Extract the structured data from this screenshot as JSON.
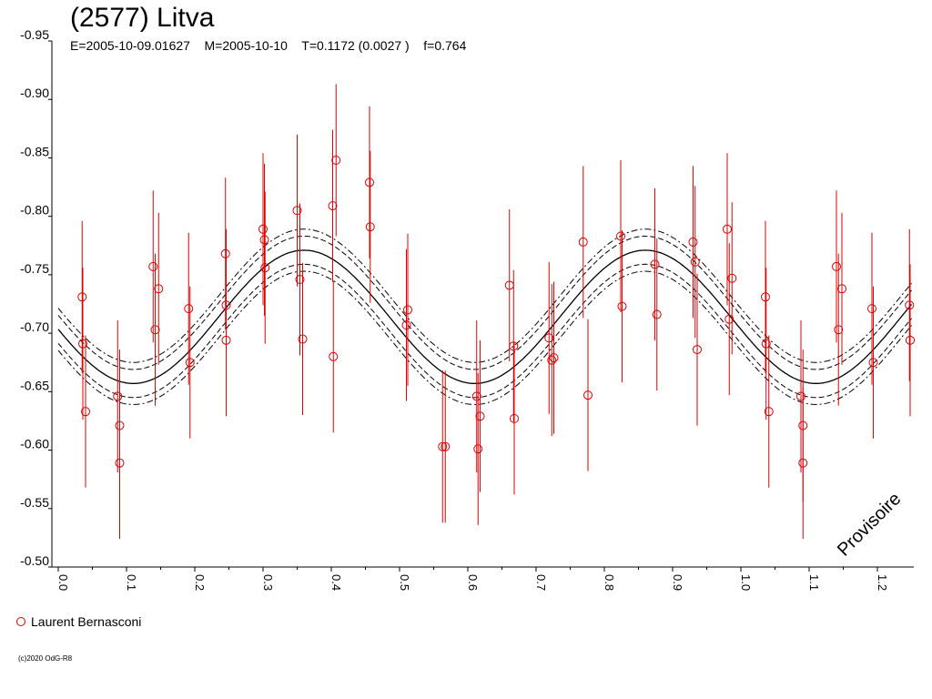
{
  "chart_data": {
    "type": "scatter",
    "title": "(2577) Litva",
    "subtitle": "E=2005-10-09.01627    M=2005-10-10    T=0.1172 (0.0027 )    f=0.764",
    "watermark": "Provisoire",
    "xlim": [
      0.0,
      1.25
    ],
    "ylim": [
      -0.95,
      -0.5
    ],
    "x_ticks": [
      "0.0",
      "0.1",
      "0.2",
      "0.3",
      "0.4",
      "0.5",
      "0.6",
      "0.7",
      "0.8",
      "0.9",
      "1.0",
      "1.1",
      "1.2"
    ],
    "y_ticks": [
      "-0.95",
      "-0.90",
      "-0.85",
      "-0.80",
      "-0.75",
      "-0.70",
      "-0.65",
      "-0.60",
      "-0.55",
      "-0.50"
    ],
    "fit": {
      "mean": -0.714,
      "terms": [
        {
          "h": 1,
          "a": 0.0,
          "b": 0.0
        },
        {
          "h": 2,
          "a": 0.0,
          "b": 0.0
        }
      ],
      "amplitude": 0.057,
      "peak_phase": 0.36,
      "band_inner": 0.012,
      "band_outer": 0.018
    },
    "series": [
      {
        "name": "Laurent Bernasconi",
        "color": "#e00000",
        "points": [
          [
            0.035,
            -0.731,
            0.065
          ],
          [
            0.036,
            -0.691,
            0.065
          ],
          [
            0.04,
            -0.633,
            0.065
          ],
          [
            0.087,
            -0.646,
            0.065
          ],
          [
            0.09,
            -0.621,
            0.065
          ],
          [
            0.09,
            -0.589,
            0.065
          ],
          [
            0.139,
            -0.757,
            0.065
          ],
          [
            0.142,
            -0.703,
            0.065
          ],
          [
            0.147,
            -0.738,
            0.065
          ],
          [
            0.191,
            -0.721,
            0.065
          ],
          [
            0.193,
            -0.675,
            0.065
          ],
          [
            0.245,
            -0.768,
            0.065
          ],
          [
            0.246,
            -0.724,
            0.065
          ],
          [
            0.246,
            -0.694,
            0.065
          ],
          [
            0.3,
            -0.789,
            0.065
          ],
          [
            0.302,
            -0.78,
            0.065
          ],
          [
            0.303,
            -0.756,
            0.065
          ],
          [
            0.35,
            -0.805,
            0.065
          ],
          [
            0.354,
            -0.746,
            0.065
          ],
          [
            0.358,
            -0.695,
            0.065
          ],
          [
            0.402,
            -0.809,
            0.065
          ],
          [
            0.403,
            -0.68,
            0.065
          ],
          [
            0.407,
            -0.848,
            0.065
          ],
          [
            0.456,
            -0.829,
            0.065
          ],
          [
            0.457,
            -0.791,
            0.065
          ],
          [
            0.51,
            -0.707,
            0.065
          ],
          [
            0.512,
            -0.72,
            0.065
          ],
          [
            0.563,
            -0.603,
            0.065
          ],
          [
            0.567,
            -0.603,
            0.065
          ],
          [
            0.613,
            -0.646,
            0.065
          ],
          [
            0.615,
            -0.601,
            0.065
          ],
          [
            0.618,
            -0.629,
            0.065
          ],
          [
            0.661,
            -0.741,
            0.065
          ],
          [
            0.667,
            -0.689,
            0.065
          ],
          [
            0.668,
            -0.627,
            0.065
          ],
          [
            0.719,
            -0.696,
            0.065
          ],
          [
            0.723,
            -0.677,
            0.065
          ],
          [
            0.726,
            -0.679,
            0.065
          ],
          [
            0.769,
            -0.778,
            0.065
          ],
          [
            0.776,
            -0.647,
            0.065
          ],
          [
            0.824,
            -0.783,
            0.065
          ],
          [
            0.826,
            -0.723,
            0.065
          ],
          [
            0.874,
            -0.759,
            0.065
          ],
          [
            0.877,
            -0.716,
            0.065
          ],
          [
            0.93,
            -0.778,
            0.065
          ],
          [
            0.933,
            -0.761,
            0.065
          ],
          [
            0.936,
            -0.686,
            0.065
          ],
          [
            0.98,
            -0.789,
            0.065
          ],
          [
            0.983,
            -0.712,
            0.065
          ],
          [
            0.987,
            -0.747,
            0.065
          ],
          [
            1.036,
            -0.731,
            0.065
          ],
          [
            1.037,
            -0.691,
            0.065
          ],
          [
            1.041,
            -0.633,
            0.065
          ],
          [
            1.088,
            -0.646,
            0.065
          ],
          [
            1.091,
            -0.621,
            0.065
          ],
          [
            1.091,
            -0.589,
            0.065
          ],
          [
            1.14,
            -0.757,
            0.065
          ],
          [
            1.143,
            -0.703,
            0.065
          ],
          [
            1.148,
            -0.738,
            0.065
          ],
          [
            1.192,
            -0.721,
            0.065
          ],
          [
            1.194,
            -0.675,
            0.065
          ],
          [
            1.247,
            -0.724,
            0.065
          ],
          [
            1.248,
            -0.694,
            0.065
          ]
        ]
      }
    ]
  },
  "footer": {
    "copyright": "(c)2020 OdG-R8"
  }
}
